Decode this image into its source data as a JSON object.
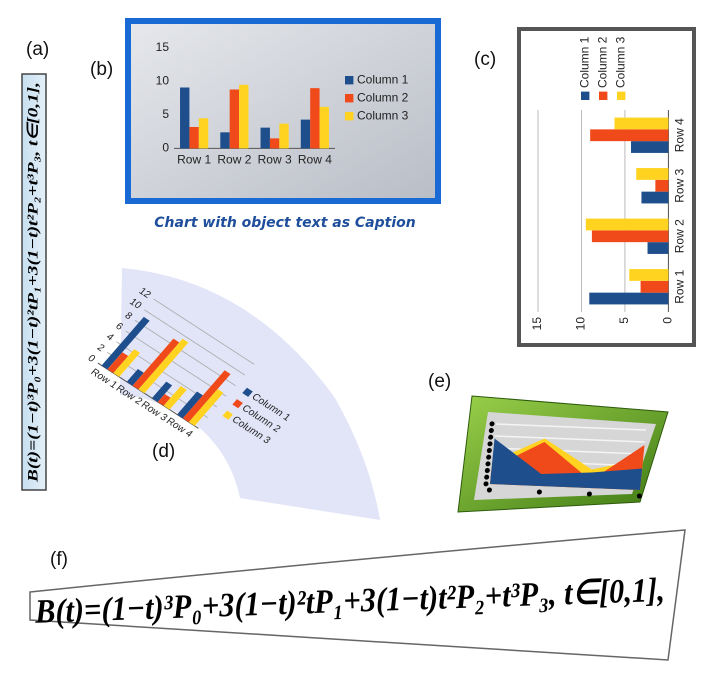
{
  "panel_labels": [
    "(a)",
    "(b)",
    "(c)",
    "(d)",
    "(e)",
    "(f)"
  ],
  "formula_a": "B(t)=(1−t)³P₀+3(1−t)²tP₁+3(1−t)t²P₂+t³P₃, t∈[0,1],",
  "formula_f": "B(t)=(1−t)³P₀+3(1−t)²tP₁+3(1−t)t²P₂+t³P₃, t∈[0,1],",
  "caption": "Chart with object text as Caption",
  "chart_data": [
    {
      "type": "bar",
      "categories": [
        "Row 1",
        "Row 2",
        "Row 3",
        "Row 4"
      ],
      "series": [
        {
          "name": "Column 1",
          "color": "#1f4e8c",
          "values": [
            9.1,
            2.4,
            3.1,
            4.3
          ]
        },
        {
          "name": "Column 2",
          "color": "#f04a1a",
          "values": [
            3.2,
            8.8,
            1.5,
            9
          ]
        },
        {
          "name": "Column 3",
          "color": "#ffd320",
          "values": [
            4.5,
            9.5,
            3.7,
            6.2
          ]
        }
      ],
      "ylim": [
        0,
        15
      ],
      "yticks": [
        0,
        5,
        10,
        15
      ],
      "grid": false,
      "legend": "right"
    },
    {
      "type": "bar",
      "categories": [
        "Row 1",
        "Row 2",
        "Row 3",
        "Row 4"
      ],
      "series": [
        {
          "name": "Column 1",
          "color": "#1f4e8c",
          "values": [
            9.1,
            2.4,
            3.1,
            4.3
          ]
        },
        {
          "name": "Column 2",
          "color": "#f04a1a",
          "values": [
            3.2,
            8.8,
            1.5,
            9
          ]
        },
        {
          "name": "Column 3",
          "color": "#ffd320",
          "values": [
            4.5,
            9.5,
            3.7,
            6.2
          ]
        }
      ],
      "ylim": [
        0,
        15
      ],
      "yticks": [
        0,
        5,
        10,
        15
      ],
      "grid": true,
      "legend": "right"
    },
    {
      "type": "bar",
      "categories": [
        "Row 1",
        "Row 2",
        "Row 3",
        "Row 4"
      ],
      "series": [
        {
          "name": "Column 1",
          "color": "#1f4e8c",
          "values": [
            9.1,
            2.4,
            3.1,
            4.3
          ]
        },
        {
          "name": "Column 2",
          "color": "#f04a1a",
          "values": [
            3.2,
            8.8,
            1.5,
            9
          ]
        },
        {
          "name": "Column 3",
          "color": "#ffd320",
          "values": [
            4.5,
            9.5,
            3.7,
            6.2
          ]
        }
      ],
      "ylim": [
        0,
        12
      ],
      "yticks": [
        0,
        2,
        4,
        6,
        8,
        10,
        12
      ],
      "grid": true,
      "legend": "right"
    },
    {
      "type": "area",
      "categories": [
        null,
        null,
        null,
        null
      ],
      "series": [
        {
          "name": null,
          "color": "#ffd320",
          "values": [
            4.5,
            9.5,
            3.7,
            6.2
          ]
        },
        {
          "name": null,
          "color": "#f04a1a",
          "values": [
            3.2,
            8.8,
            1.5,
            9
          ]
        },
        {
          "name": null,
          "color": "#1f4e8c",
          "values": [
            9.1,
            2.4,
            3.1,
            4.3
          ]
        }
      ],
      "ylim": [
        0,
        12
      ]
    }
  ]
}
